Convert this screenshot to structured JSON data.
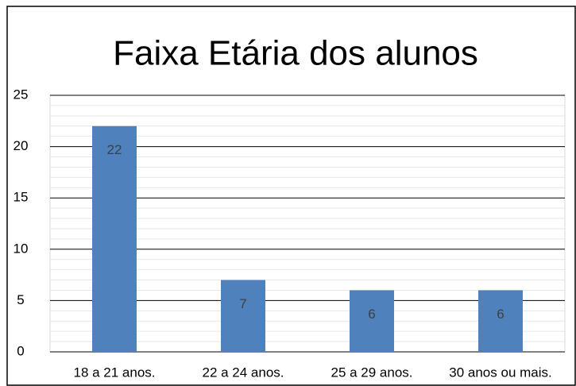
{
  "chart_data": {
    "type": "bar",
    "title": "Faixa Etária dos alunos",
    "categories": [
      "18 a 21 anos.",
      "22 a 24 anos.",
      "25 a 29 anos.",
      "30 anos ou mais."
    ],
    "values": [
      22,
      7,
      6,
      6
    ],
    "color": "#4f81bd",
    "ylim": [
      0,
      25
    ],
    "yticks": [
      0,
      5,
      10,
      15,
      20,
      25
    ],
    "grid": true,
    "minor_grid": true
  }
}
